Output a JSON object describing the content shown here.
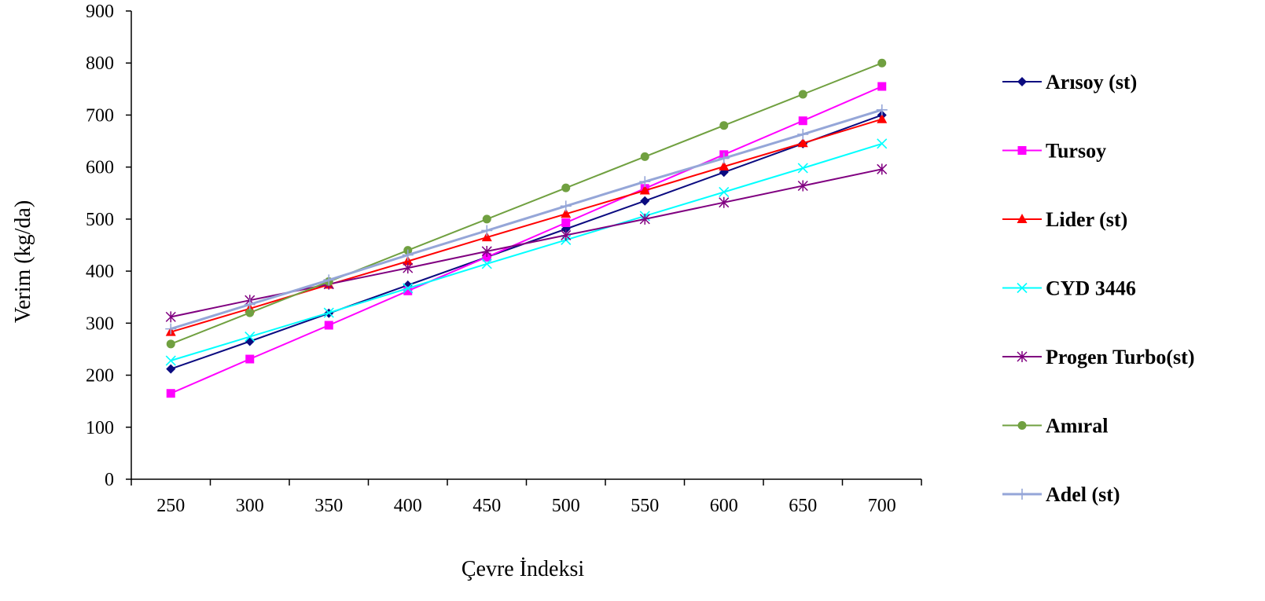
{
  "chart_data": {
    "type": "line",
    "xlabel": "Çevre İndeksi",
    "ylabel": "Verim (kg/da)",
    "categories": [
      "250",
      "300",
      "350",
      "400",
      "450",
      "500",
      "550",
      "600",
      "650",
      "700"
    ],
    "ylim": [
      0,
      900
    ],
    "yticks": [
      0,
      100,
      200,
      300,
      400,
      500,
      600,
      700,
      800,
      900
    ],
    "grid": false,
    "legend_position": "right",
    "series": [
      {
        "name": "Arısoy (st)",
        "color": "#0b0b80",
        "marker": "diamond",
        "values": [
          212,
          265,
          319,
          373,
          427,
          481,
          535,
          590,
          645,
          700
        ]
      },
      {
        "name": "Tursoy",
        "color": "#ff00ff",
        "marker": "square",
        "values": [
          165,
          231,
          296,
          362,
          427,
          493,
          559,
          624,
          689,
          755
        ]
      },
      {
        "name": "Lider (st)",
        "color": "#ff0000",
        "marker": "triangle",
        "values": [
          283,
          328,
          374,
          419,
          465,
          510,
          555,
          601,
          646,
          692
        ]
      },
      {
        "name": "CYD 3446",
        "color": "#00ffff",
        "marker": "x",
        "values": [
          228,
          274,
          320,
          367,
          414,
          460,
          506,
          552,
          598,
          645
        ]
      },
      {
        "name": "Progen Turbo(st)",
        "color": "#800080",
        "marker": "star",
        "values": [
          312,
          344,
          375,
          406,
          438,
          469,
          500,
          532,
          564,
          596
        ]
      },
      {
        "name": "Amıral",
        "color": "#70a040",
        "marker": "circle",
        "values": [
          260,
          320,
          380,
          440,
          500,
          560,
          620,
          680,
          740,
          800
        ]
      },
      {
        "name": "Adel (st)",
        "color": "#95a6d8",
        "marker": "plus",
        "values": [
          289,
          336,
          383,
          431,
          478,
          525,
          572,
          617,
          663,
          710
        ]
      }
    ]
  }
}
